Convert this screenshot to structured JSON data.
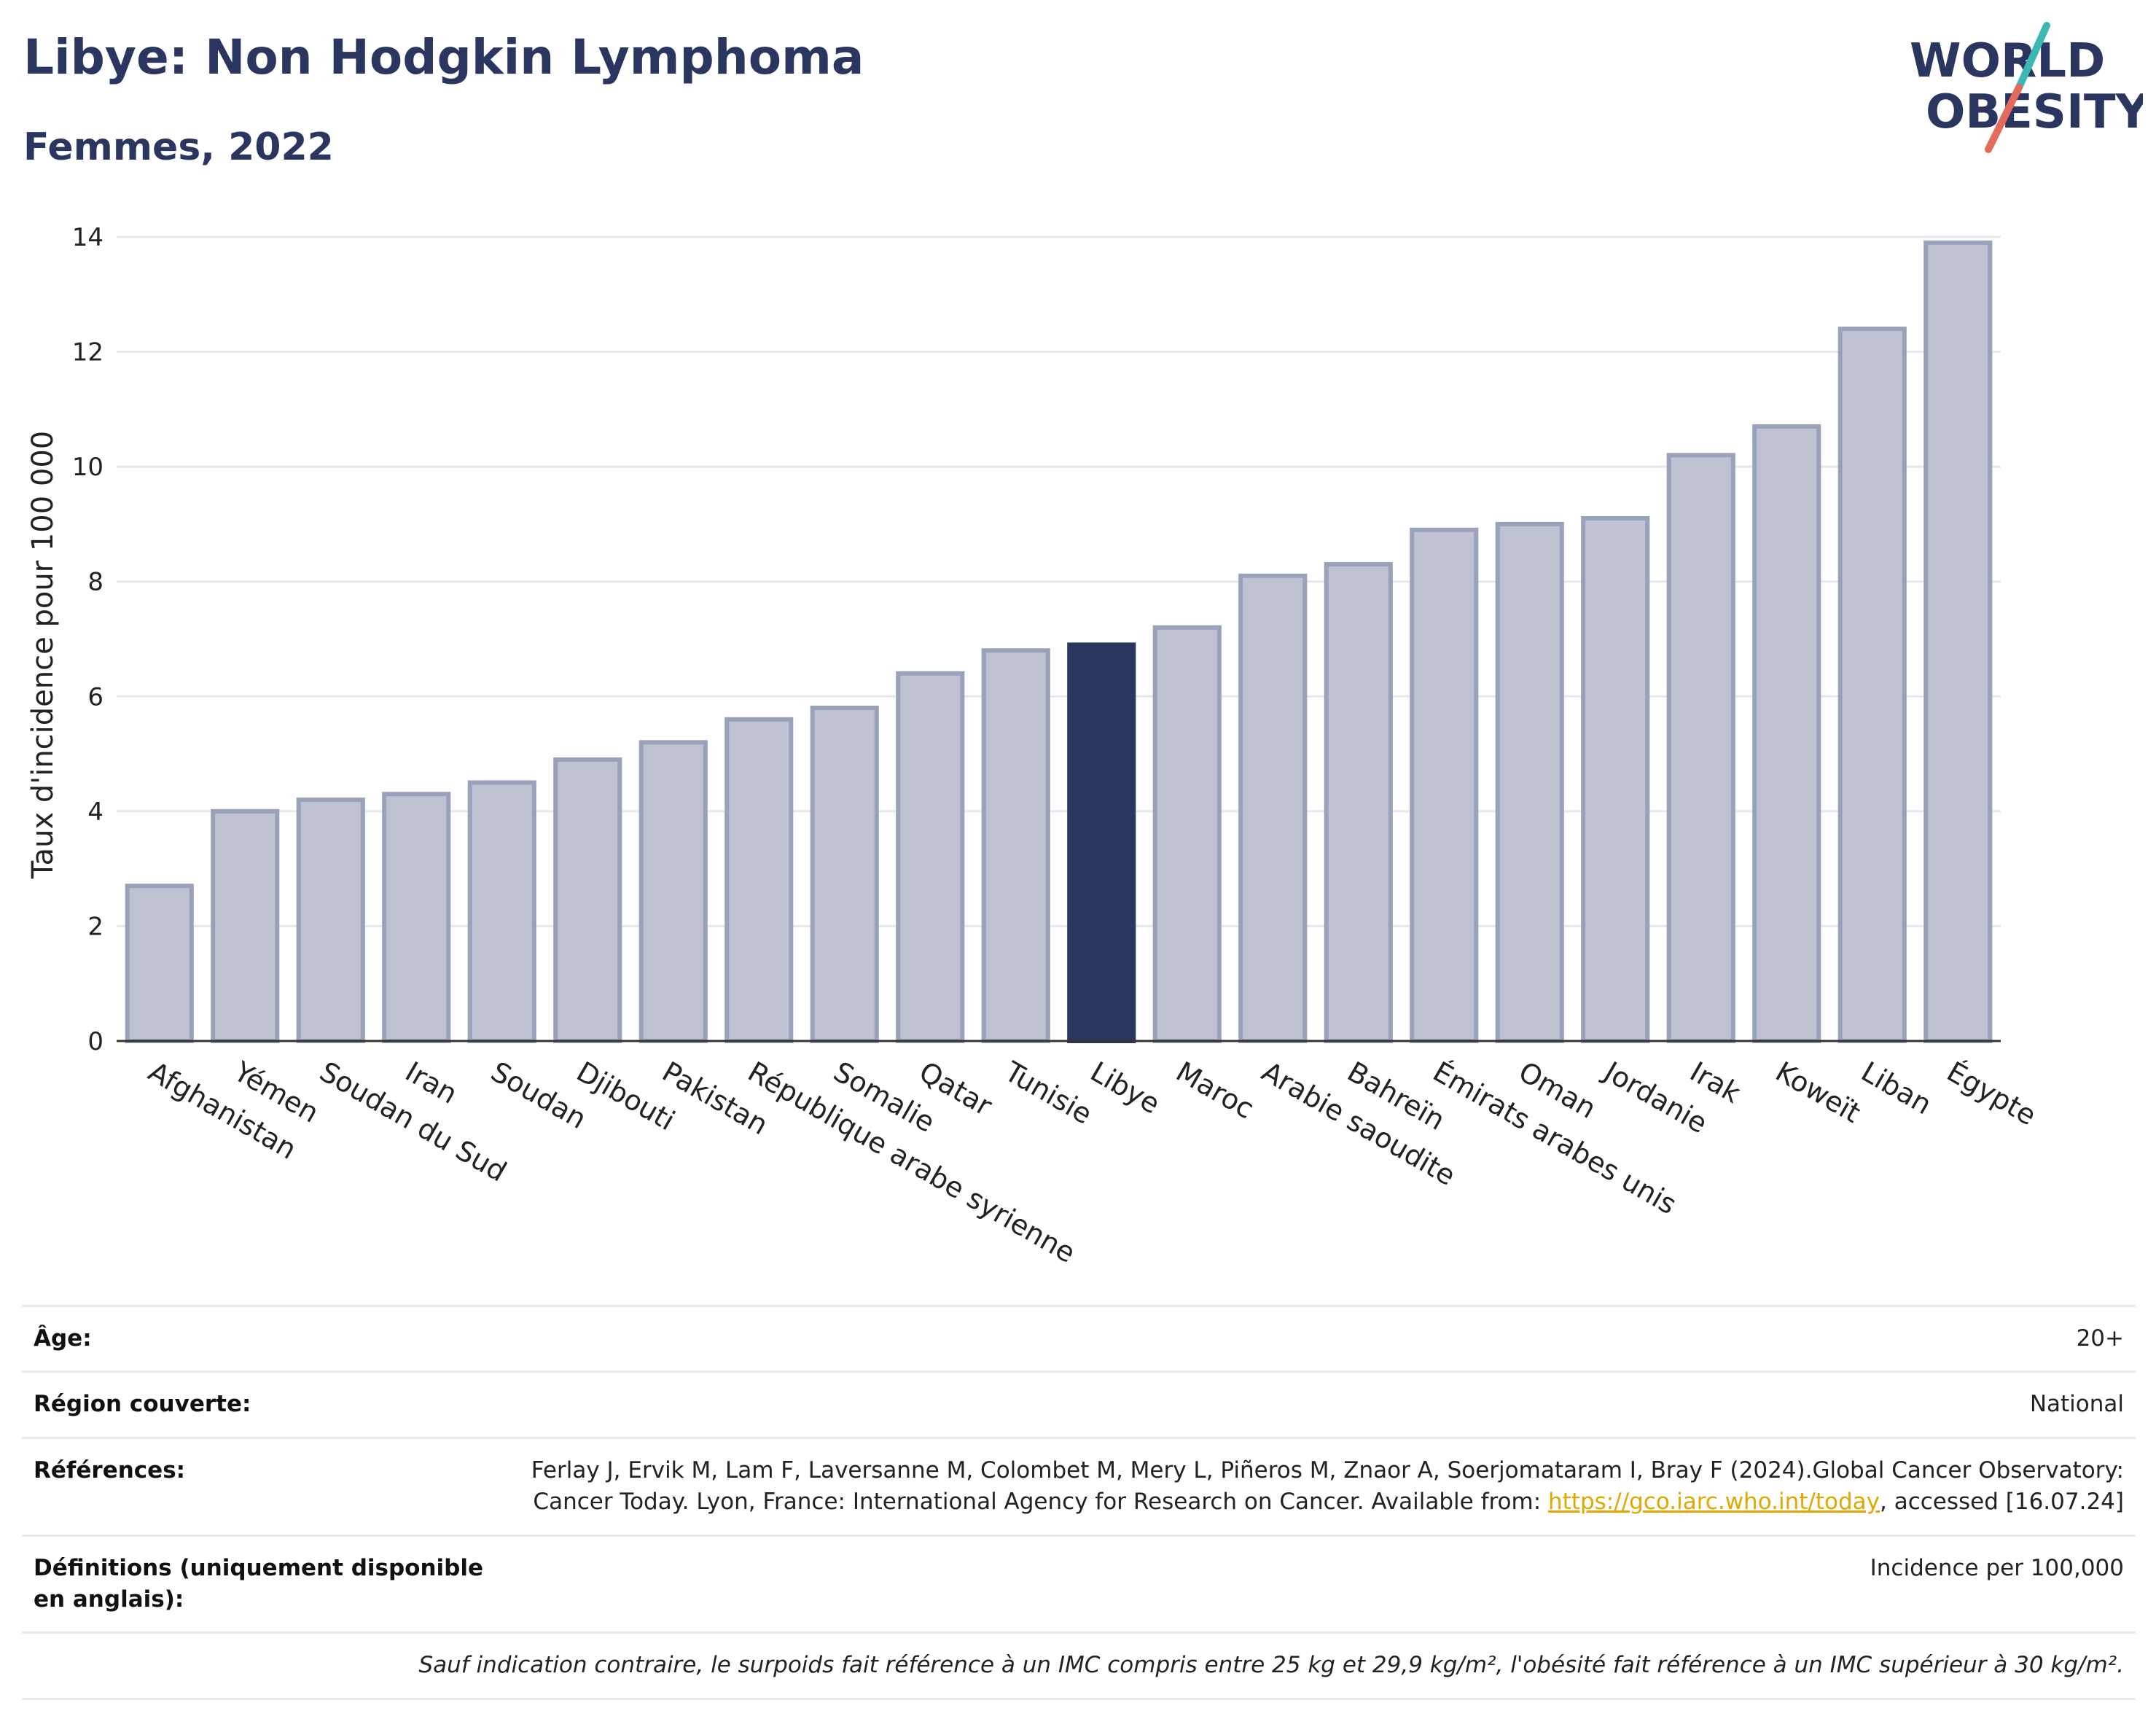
{
  "header": {
    "title": "Libye: Non Hodgkin Lymphoma",
    "subtitle": "Femmes, 2022"
  },
  "logo": {
    "line1": "WORLD",
    "line2": "OBESITY",
    "icon": "world-obesity-logo"
  },
  "colors": {
    "highlight": "#2b3660",
    "bar": "#bfc3d1",
    "bar_border": "#9aa1bb",
    "grid": "#e5e7ee",
    "link": "#e0a800"
  },
  "chart_data": {
    "type": "bar",
    "title": "Libye: Non Hodgkin Lymphoma",
    "subtitle": "Femmes, 2022",
    "xlabel": "",
    "ylabel": "Taux d'incidence pour 100 000",
    "ylim": [
      0,
      14
    ],
    "yticks": [
      0,
      2,
      4,
      6,
      8,
      10,
      12,
      14
    ],
    "grid": true,
    "highlight": "Libye",
    "categories": [
      "Afghanistan",
      "Yémen",
      "Soudan du Sud",
      "Iran",
      "Soudan",
      "Djibouti",
      "Pakistan",
      "République arabe syrienne",
      "Somalie",
      "Qatar",
      "Tunisie",
      "Libye",
      "Maroc",
      "Arabie saoudite",
      "Bahreïn",
      "Émirats arabes unis",
      "Oman",
      "Jordanie",
      "Irak",
      "Koweït",
      "Liban",
      "Égypte"
    ],
    "values": [
      2.7,
      4.0,
      4.2,
      4.3,
      4.5,
      4.9,
      5.2,
      5.6,
      5.8,
      6.4,
      6.8,
      6.9,
      7.2,
      8.1,
      8.3,
      8.9,
      9.0,
      9.1,
      10.2,
      10.7,
      12.4,
      13.9
    ]
  },
  "info": {
    "age_label": "Âge:",
    "age_value": "20+",
    "region_label": "Région couverte:",
    "region_value": "National",
    "refs_label": "Références:",
    "refs_text_1": "Ferlay J, Ervik M, Lam F, Laversanne M, Colombet M, Mery L, Piñeros M, Znaor A, Soerjomataram I, Bray F (2024).Global Cancer Observatory: Cancer Today. Lyon, France: International Agency for Research on Cancer. Available from: ",
    "refs_link": "https://gco.iarc.who.int/today",
    "refs_text_2": ", accessed [16.07.24]",
    "defs_label": "Définitions (uniquement disponible en anglais):",
    "defs_value": "Incidence per 100,000",
    "note": "Sauf indication contraire, le surpoids fait référence à un IMC compris entre 25 kg et 29,9 kg/m², l'obésité fait référence à un IMC supérieur à 30 kg/m²."
  }
}
